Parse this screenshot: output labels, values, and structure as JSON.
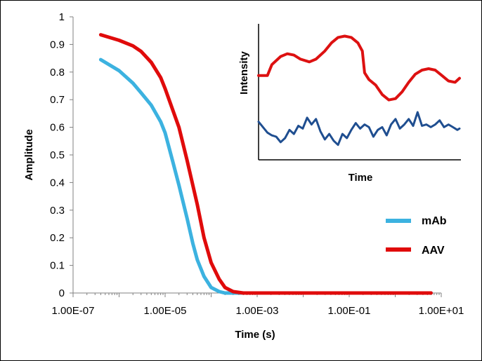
{
  "chart_data": [
    {
      "type": "line",
      "title": "",
      "xlabel": "Time (s)",
      "ylabel": "Amplitude",
      "xscale": "log",
      "xlim": [
        1e-07,
        10
      ],
      "ylim": [
        0,
        1
      ],
      "x_tick_labels": [
        "1.00E-07",
        "1.00E-05",
        "1.00E-03",
        "1.00E-01",
        "1.00E+01"
      ],
      "y_tick_labels": [
        "0",
        "0.1",
        "0.2",
        "0.3",
        "0.4",
        "0.5",
        "0.6",
        "0.7",
        "0.8",
        "0.9",
        "1"
      ],
      "grid": false,
      "legend_position": "right",
      "series": [
        {
          "name": "mAb",
          "color": "#3cb2e0",
          "points": [
            [
              4e-07,
              0.845
            ],
            [
              1e-06,
              0.805
            ],
            [
              2e-06,
              0.76
            ],
            [
              3e-06,
              0.725
            ],
            [
              5e-06,
              0.68
            ],
            [
              8e-06,
              0.62
            ],
            [
              1e-05,
              0.58
            ],
            [
              1.5e-05,
              0.47
            ],
            [
              2e-05,
              0.39
            ],
            [
              3e-05,
              0.27
            ],
            [
              4e-05,
              0.18
            ],
            [
              5e-05,
              0.12
            ],
            [
              7e-05,
              0.06
            ],
            [
              0.0001,
              0.02
            ],
            [
              0.00015,
              0.005
            ],
            [
              0.0002,
              0.0
            ],
            [
              0.001,
              0.0
            ],
            [
              0.01,
              0.0
            ],
            [
              0.1,
              0.0
            ],
            [
              1,
              0.0
            ],
            [
              6,
              0.0
            ]
          ]
        },
        {
          "name": "AAV",
          "color": "#e00b0b",
          "points": [
            [
              4e-07,
              0.935
            ],
            [
              1e-06,
              0.915
            ],
            [
              2e-06,
              0.895
            ],
            [
              3e-06,
              0.875
            ],
            [
              5e-06,
              0.835
            ],
            [
              8e-06,
              0.78
            ],
            [
              1e-05,
              0.74
            ],
            [
              2e-05,
              0.6
            ],
            [
              3e-05,
              0.48
            ],
            [
              5e-05,
              0.32
            ],
            [
              7e-05,
              0.2
            ],
            [
              0.0001,
              0.11
            ],
            [
              0.00015,
              0.05
            ],
            [
              0.0002,
              0.02
            ],
            [
              0.0003,
              0.005
            ],
            [
              0.0005,
              0.0
            ],
            [
              0.001,
              0.0
            ],
            [
              0.01,
              0.0
            ],
            [
              0.1,
              0.0
            ],
            [
              1,
              0.0
            ],
            [
              6,
              0.0
            ]
          ]
        }
      ]
    },
    {
      "type": "line",
      "title": "",
      "xlabel": "Time",
      "ylabel": "Intensity",
      "grid": false,
      "series": [
        {
          "color": "#dd1111",
          "points": [
            [
              0,
              62
            ],
            [
              4,
              62
            ],
            [
              6,
              70
            ],
            [
              10,
              76
            ],
            [
              13,
              78
            ],
            [
              16,
              77
            ],
            [
              19,
              74
            ],
            [
              23,
              72
            ],
            [
              26,
              74
            ],
            [
              30,
              80
            ],
            [
              33,
              86
            ],
            [
              36,
              90
            ],
            [
              39,
              91
            ],
            [
              42,
              90
            ],
            [
              45,
              86
            ],
            [
              47,
              80
            ],
            [
              48,
              64
            ],
            [
              50,
              59
            ],
            [
              53,
              55
            ],
            [
              56,
              48
            ],
            [
              59,
              44
            ],
            [
              62,
              45
            ],
            [
              65,
              50
            ],
            [
              68,
              57
            ],
            [
              71,
              63
            ],
            [
              74,
              66
            ],
            [
              77,
              67
            ],
            [
              80,
              66
            ],
            [
              83,
              62
            ],
            [
              86,
              58
            ],
            [
              89,
              57
            ],
            [
              91,
              60
            ]
          ]
        },
        {
          "color": "#1f4e90",
          "points": [
            [
              0,
              28
            ],
            [
              2,
              24
            ],
            [
              4,
              20
            ],
            [
              6,
              18
            ],
            [
              8,
              17
            ],
            [
              10,
              13
            ],
            [
              12,
              16
            ],
            [
              14,
              22
            ],
            [
              16,
              19
            ],
            [
              18,
              25
            ],
            [
              20,
              23
            ],
            [
              22,
              31
            ],
            [
              24,
              26
            ],
            [
              26,
              30
            ],
            [
              28,
              21
            ],
            [
              30,
              15
            ],
            [
              32,
              19
            ],
            [
              34,
              14
            ],
            [
              36,
              11
            ],
            [
              38,
              19
            ],
            [
              40,
              16
            ],
            [
              42,
              22
            ],
            [
              44,
              27
            ],
            [
              46,
              23
            ],
            [
              48,
              26
            ],
            [
              50,
              24
            ],
            [
              52,
              17
            ],
            [
              54,
              22
            ],
            [
              56,
              24
            ],
            [
              58,
              18
            ],
            [
              60,
              26
            ],
            [
              62,
              30
            ],
            [
              64,
              23
            ],
            [
              66,
              26
            ],
            [
              68,
              30
            ],
            [
              70,
              25
            ],
            [
              72,
              35
            ],
            [
              74,
              25
            ],
            [
              76,
              26
            ],
            [
              78,
              24
            ],
            [
              80,
              26
            ],
            [
              82,
              29
            ],
            [
              84,
              24
            ],
            [
              86,
              26
            ],
            [
              88,
              24
            ],
            [
              90,
              22
            ],
            [
              91,
              23
            ]
          ]
        }
      ]
    }
  ],
  "legend": [
    {
      "label": "mAb",
      "color": "#3cb2e0"
    },
    {
      "label": "AAV",
      "color": "#e00b0b"
    }
  ]
}
